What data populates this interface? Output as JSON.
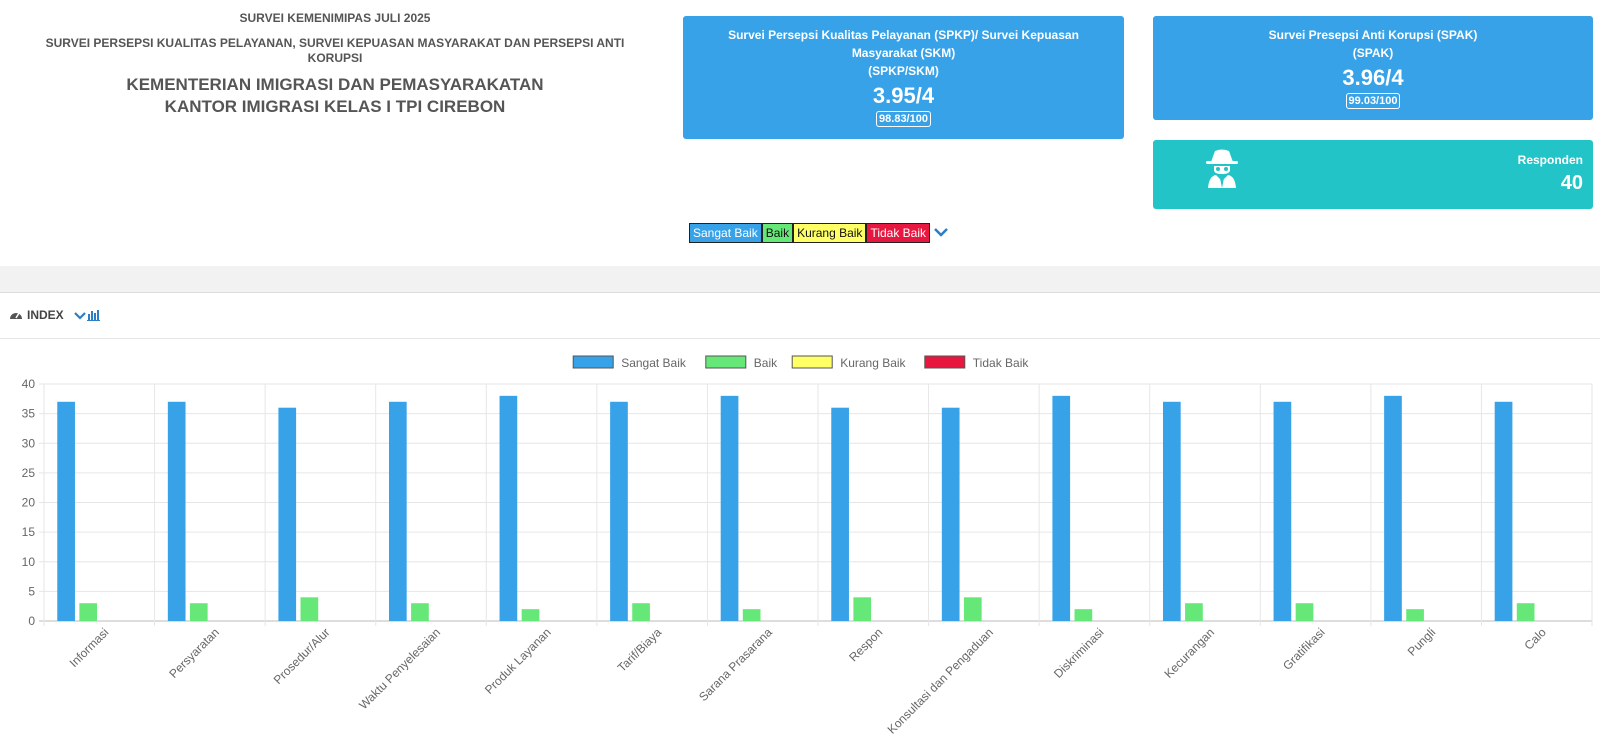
{
  "header": {
    "top": "SURVEI KEMENIMIPAS JULI 2025",
    "subtitle": "SURVEI PERSEPSI KUALITAS PELAYANAN, SURVEI KEPUASAN MASYARAKAT DAN PERSEPSI ANTI KORUPSI",
    "title_line1": "KEMENTERIAN IMIGRASI DAN PEMASYARAKATAN",
    "title_line2": "KANTOR IMIGRASI KELAS I TPI CIREBON"
  },
  "spkp_card": {
    "title_line1": "Survei Persepsi Kualitas Pelayanan (SPKP)/ Survei Kepuasan Masyarakat (SKM)",
    "title_line2": "(SPKP/SKM)",
    "score": "3.95/4",
    "pill": "98.83/100"
  },
  "spak_card": {
    "title_line1": "Survei Presepsi Anti Korupsi (SPAK)",
    "title_line2": "(SPAK)",
    "score": "3.96/4",
    "pill": "99.03/100"
  },
  "respondent_card": {
    "label": "Responden",
    "value": "40",
    "icon": "spy-icon"
  },
  "legend_buttons": [
    {
      "label": "Sangat Baik"
    },
    {
      "label": "Baik"
    },
    {
      "label": "Kurang Baik"
    },
    {
      "label": "Tidak Baik"
    }
  ],
  "index_section": {
    "label": "INDEX",
    "icon": "tachometer-icon"
  },
  "colors": {
    "primary": "#37a2e8",
    "respondent": "#22c4c7",
    "sangat_baik": "#37a2e8",
    "baik": "#66e878",
    "kurang_baik": "#ffff66",
    "tidak_baik": "#e8173f"
  },
  "chart_data": {
    "type": "bar",
    "categories": [
      "Informasi",
      "Persyaratan",
      "Prosedur/Alur",
      "Waktu Penyelesaian",
      "Produk Layanan",
      "Tarif/Biaya",
      "Sarana Prasarana",
      "Respon",
      "Konsultasi dan Pengaduan",
      "Diskriminasi",
      "Kecurangan",
      "Gratifikasi",
      "Pungli",
      "Calo"
    ],
    "series": [
      {
        "name": "Sangat Baik",
        "color": "#37a2e8",
        "values": [
          37,
          37,
          36,
          37,
          38,
          37,
          38,
          36,
          36,
          38,
          37,
          37,
          38,
          37
        ]
      },
      {
        "name": "Baik",
        "color": "#66e878",
        "values": [
          3,
          3,
          4,
          3,
          2,
          3,
          2,
          4,
          4,
          2,
          3,
          3,
          2,
          3
        ]
      },
      {
        "name": "Kurang Baik",
        "color": "#ffff66",
        "values": [
          0,
          0,
          0,
          0,
          0,
          0,
          0,
          0,
          0,
          0,
          0,
          0,
          0,
          0
        ]
      },
      {
        "name": "Tidak Baik",
        "color": "#e8173f",
        "values": [
          0,
          0,
          0,
          0,
          0,
          0,
          0,
          0,
          0,
          0,
          0,
          0,
          0,
          0
        ]
      }
    ],
    "yticks": [
      "0",
      "5",
      "10",
      "15",
      "20",
      "25",
      "30",
      "35",
      "40"
    ],
    "ylim": [
      0,
      40
    ],
    "grid": true,
    "legend": "top-center"
  }
}
